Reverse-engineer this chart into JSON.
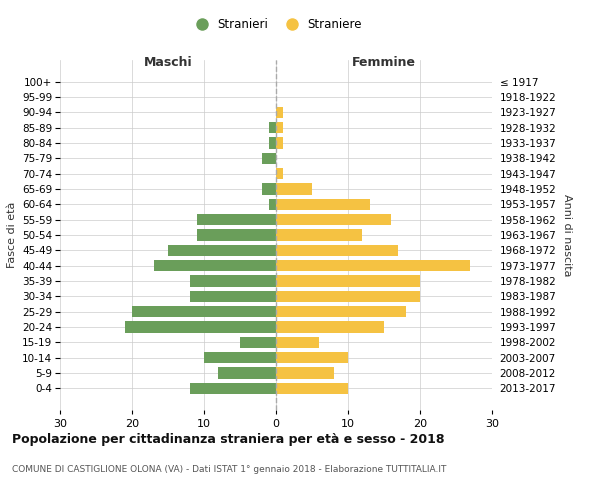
{
  "age_groups": [
    "0-4",
    "5-9",
    "10-14",
    "15-19",
    "20-24",
    "25-29",
    "30-34",
    "35-39",
    "40-44",
    "45-49",
    "50-54",
    "55-59",
    "60-64",
    "65-69",
    "70-74",
    "75-79",
    "80-84",
    "85-89",
    "90-94",
    "95-99",
    "100+"
  ],
  "birth_years": [
    "2013-2017",
    "2008-2012",
    "2003-2007",
    "1998-2002",
    "1993-1997",
    "1988-1992",
    "1983-1987",
    "1978-1982",
    "1973-1977",
    "1968-1972",
    "1963-1967",
    "1958-1962",
    "1953-1957",
    "1948-1952",
    "1943-1947",
    "1938-1942",
    "1933-1937",
    "1928-1932",
    "1923-1927",
    "1918-1922",
    "≤ 1917"
  ],
  "males": [
    12,
    8,
    10,
    5,
    21,
    20,
    12,
    12,
    17,
    15,
    11,
    11,
    1,
    2,
    0,
    2,
    1,
    1,
    0,
    0,
    0
  ],
  "females": [
    10,
    8,
    10,
    6,
    15,
    18,
    20,
    20,
    27,
    17,
    12,
    16,
    13,
    5,
    1,
    0,
    1,
    1,
    1,
    0,
    0
  ],
  "male_color": "#6a9e5a",
  "female_color": "#f5c242",
  "background_color": "#ffffff",
  "grid_color": "#cccccc",
  "title": "Popolazione per cittadinanza straniera per età e sesso - 2018",
  "subtitle": "COMUNE DI CASTIGLIONE OLONA (VA) - Dati ISTAT 1° gennaio 2018 - Elaborazione TUTTITALIA.IT",
  "ylabel_left": "Fasce di età",
  "ylabel_right": "Anni di nascita",
  "xlabel_left": "Maschi",
  "xlabel_right": "Femmine",
  "xlim": 30,
  "legend_stranieri": "Stranieri",
  "legend_straniere": "Straniere"
}
